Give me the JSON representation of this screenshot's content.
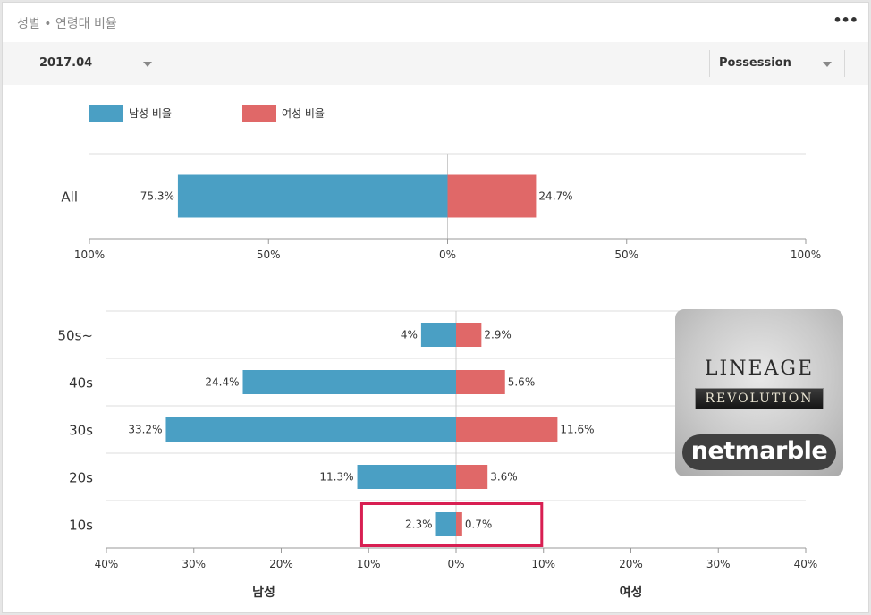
{
  "card": {
    "title": "성별 • 연령대 비율",
    "more_icon": "more-horizontal-icon"
  },
  "filters": {
    "date": "2017.04",
    "type": "Possession"
  },
  "colors": {
    "male": "#4a9fc4",
    "female": "#e06868",
    "highlight": "#d81f52"
  },
  "legend": [
    {
      "label": "남성 비율",
      "color": "#4a9fc4"
    },
    {
      "label": "여성 비율",
      "color": "#e06868"
    }
  ],
  "chart_data": [
    {
      "type": "bar",
      "orientation": "horizontal-diverging",
      "categories": [
        "All"
      ],
      "series": [
        {
          "name": "남성 비율",
          "values": [
            75.3
          ]
        },
        {
          "name": "여성 비율",
          "values": [
            24.7
          ]
        }
      ],
      "value_labels": {
        "male": [
          "75.3%"
        ],
        "female": [
          "24.7%"
        ]
      },
      "xlim": [
        -100,
        100
      ],
      "x_ticks": [
        "100%",
        "50%",
        "0%",
        "50%",
        "100%"
      ],
      "grid": true,
      "legend_position": "top-left"
    },
    {
      "type": "bar",
      "orientation": "horizontal-diverging",
      "categories": [
        "50s~",
        "40s",
        "30s",
        "20s",
        "10s"
      ],
      "series": [
        {
          "name": "남성 비율",
          "values": [
            4,
            24.4,
            33.2,
            11.3,
            2.3
          ]
        },
        {
          "name": "여성 비율",
          "values": [
            2.9,
            5.6,
            11.6,
            3.6,
            0.7
          ]
        }
      ],
      "value_labels": {
        "male": [
          "4%",
          "24.4%",
          "33.2%",
          "11.3%",
          "2.3%"
        ],
        "female": [
          "2.9%",
          "5.6%",
          "11.6%",
          "3.6%",
          "0.7%"
        ]
      },
      "xlim": [
        -40,
        40
      ],
      "x_ticks": [
        "40%",
        "30%",
        "20%",
        "10%",
        "0%",
        "10%",
        "20%",
        "30%",
        "40%"
      ],
      "axis_labels": {
        "left": "남성",
        "right": "여성"
      },
      "highlighted_category": "10s",
      "grid": true
    }
  ],
  "app_icon": {
    "title_line": "LINEAGE",
    "subtitle_line": "REVOLUTION",
    "brand": "netmarble"
  }
}
